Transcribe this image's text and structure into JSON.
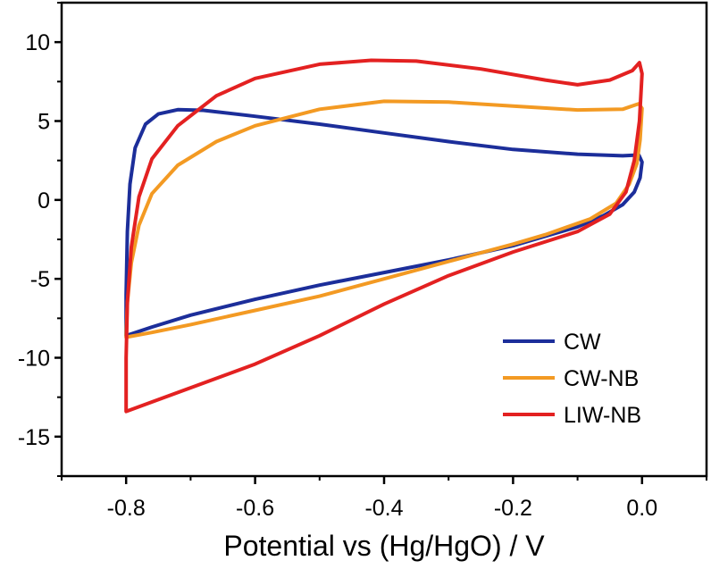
{
  "chart_data": {
    "type": "line",
    "title": "",
    "xlabel": "Potential vs (Hg/HgO) / V",
    "ylabel": "",
    "xlim": [
      -0.9,
      0.1
    ],
    "ylim": [
      -17.5,
      12.5
    ],
    "x_ticks": [
      -0.8,
      -0.6,
      -0.4,
      -0.2,
      0.0
    ],
    "x_tick_labels": [
      "-0.8",
      "-0.6",
      "-0.4",
      "-0.2",
      "0.0"
    ],
    "y_ticks": [
      10,
      5,
      0,
      -5,
      -10,
      -15
    ],
    "y_tick_labels": [
      "10",
      "5",
      "0",
      "-5",
      "-10",
      "-15"
    ],
    "grid": false,
    "legend_position": "bottom-right",
    "series": [
      {
        "name": "CW",
        "color": "#1c2e9a",
        "points": [
          [
            -0.8,
            -8.6
          ],
          [
            -0.8,
            -6.0
          ],
          [
            -0.798,
            -2.0
          ],
          [
            -0.794,
            1.0
          ],
          [
            -0.786,
            3.3
          ],
          [
            -0.77,
            4.8
          ],
          [
            -0.75,
            5.45
          ],
          [
            -0.72,
            5.72
          ],
          [
            -0.68,
            5.68
          ],
          [
            -0.6,
            5.3
          ],
          [
            -0.5,
            4.8
          ],
          [
            -0.4,
            4.25
          ],
          [
            -0.3,
            3.7
          ],
          [
            -0.2,
            3.2
          ],
          [
            -0.1,
            2.9
          ],
          [
            -0.03,
            2.8
          ],
          [
            -0.005,
            2.85
          ],
          [
            0.0,
            2.4
          ],
          [
            -0.003,
            1.4
          ],
          [
            -0.012,
            0.5
          ],
          [
            -0.03,
            -0.3
          ],
          [
            -0.06,
            -1.0
          ],
          [
            -0.1,
            -1.7
          ],
          [
            -0.15,
            -2.3
          ],
          [
            -0.2,
            -2.9
          ],
          [
            -0.3,
            -3.8
          ],
          [
            -0.4,
            -4.6
          ],
          [
            -0.5,
            -5.4
          ],
          [
            -0.6,
            -6.3
          ],
          [
            -0.7,
            -7.3
          ],
          [
            -0.76,
            -8.05
          ],
          [
            -0.8,
            -8.6
          ]
        ]
      },
      {
        "name": "CW-NB",
        "color": "#f39a23",
        "points": [
          [
            -0.8,
            -8.7
          ],
          [
            -0.798,
            -6.5
          ],
          [
            -0.792,
            -4.0
          ],
          [
            -0.78,
            -1.6
          ],
          [
            -0.76,
            0.4
          ],
          [
            -0.72,
            2.2
          ],
          [
            -0.66,
            3.7
          ],
          [
            -0.6,
            4.7
          ],
          [
            -0.5,
            5.75
          ],
          [
            -0.4,
            6.25
          ],
          [
            -0.3,
            6.2
          ],
          [
            -0.2,
            5.95
          ],
          [
            -0.1,
            5.7
          ],
          [
            -0.03,
            5.75
          ],
          [
            -0.005,
            6.1
          ],
          [
            0.0,
            5.8
          ],
          [
            -0.003,
            3.8
          ],
          [
            -0.008,
            2.3
          ],
          [
            -0.02,
            1.0
          ],
          [
            -0.04,
            -0.2
          ],
          [
            -0.08,
            -1.2
          ],
          [
            -0.15,
            -2.2
          ],
          [
            -0.2,
            -2.8
          ],
          [
            -0.3,
            -3.9
          ],
          [
            -0.4,
            -5.0
          ],
          [
            -0.5,
            -6.1
          ],
          [
            -0.6,
            -7.0
          ],
          [
            -0.7,
            -7.9
          ],
          [
            -0.76,
            -8.4
          ],
          [
            -0.8,
            -8.7
          ]
        ]
      },
      {
        "name": "LIW-NB",
        "color": "#e32121",
        "points": [
          [
            -0.8,
            -13.4
          ],
          [
            -0.8,
            -10.0
          ],
          [
            -0.798,
            -6.5
          ],
          [
            -0.792,
            -3.0
          ],
          [
            -0.78,
            0.2
          ],
          [
            -0.76,
            2.6
          ],
          [
            -0.72,
            4.7
          ],
          [
            -0.66,
            6.6
          ],
          [
            -0.6,
            7.7
          ],
          [
            -0.5,
            8.6
          ],
          [
            -0.42,
            8.85
          ],
          [
            -0.35,
            8.8
          ],
          [
            -0.25,
            8.3
          ],
          [
            -0.15,
            7.6
          ],
          [
            -0.1,
            7.3
          ],
          [
            -0.05,
            7.6
          ],
          [
            -0.015,
            8.2
          ],
          [
            -0.004,
            8.7
          ],
          [
            0.0,
            8.0
          ],
          [
            -0.004,
            5.0
          ],
          [
            -0.012,
            2.5
          ],
          [
            -0.025,
            0.5
          ],
          [
            -0.05,
            -0.9
          ],
          [
            -0.1,
            -2.0
          ],
          [
            -0.2,
            -3.3
          ],
          [
            -0.3,
            -4.8
          ],
          [
            -0.4,
            -6.6
          ],
          [
            -0.5,
            -8.6
          ],
          [
            -0.6,
            -10.4
          ],
          [
            -0.7,
            -11.9
          ],
          [
            -0.76,
            -12.8
          ],
          [
            -0.8,
            -13.4
          ]
        ]
      }
    ]
  }
}
